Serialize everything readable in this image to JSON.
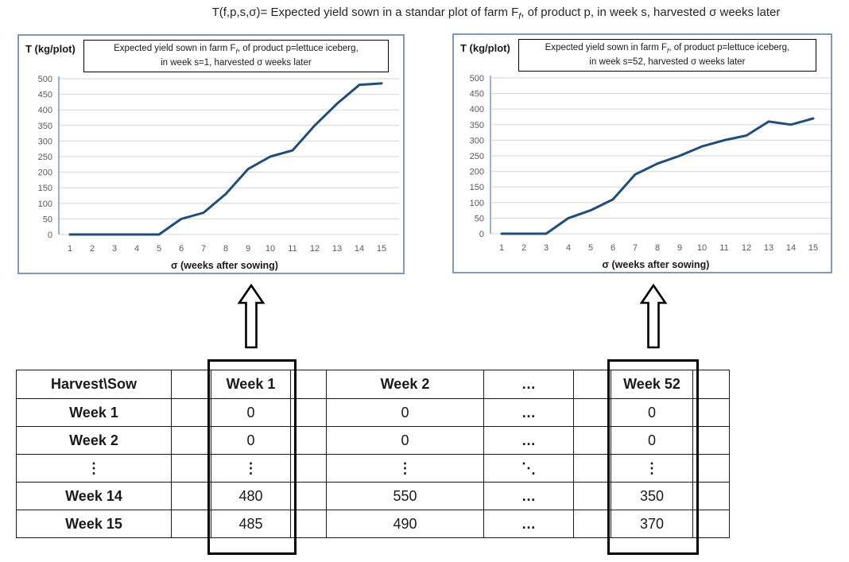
{
  "page": {
    "title_pre": "T(f,p,s,σ)= Expected yield sown in a standar plot of farm F",
    "title_sub": "f",
    "title_post": ", of product p, in week s, harvested σ weeks later"
  },
  "charts": [
    {
      "y_unit_label": "T (kg/plot)",
      "box_title_pre": "Expected yield sown in farm F",
      "box_title_sub": "f",
      "box_title_mid": ", of product p=lettuce iceberg,",
      "box_title_line2": "in week s=1, harvested σ weeks later",
      "x_axis_title": "σ (weeks after sowing)"
    },
    {
      "y_unit_label": "T (kg/plot)",
      "box_title_pre": "Expected yield sown in farm F",
      "box_title_sub": "f",
      "box_title_mid": ", of product p=lettuce iceberg,",
      "box_title_line2": "in week s=52, harvested σ weeks later",
      "x_axis_title": "σ (weeks after sowing)"
    }
  ],
  "chart_data": [
    {
      "type": "line",
      "title": "Expected yield sown in farm Ff, of product p=lettuce iceberg, in week s=1, harvested σ weeks later",
      "x": [
        1,
        2,
        3,
        4,
        5,
        6,
        7,
        8,
        9,
        10,
        11,
        12,
        13,
        14,
        15
      ],
      "values": [
        0,
        0,
        0,
        0,
        0,
        50,
        70,
        130,
        210,
        250,
        270,
        350,
        420,
        480,
        485
      ],
      "xlabel": "σ (weeks after sowing)",
      "ylabel": "T (kg/plot)",
      "ylim": [
        0,
        500
      ],
      "y_ticks": [
        0,
        50,
        100,
        150,
        200,
        250,
        300,
        350,
        400,
        450,
        500
      ],
      "grid": true,
      "legend": "none"
    },
    {
      "type": "line",
      "title": "Expected yield sown in farm Ff, of product p=lettuce iceberg, in week s=52, harvested σ weeks later",
      "x": [
        1,
        2,
        3,
        4,
        5,
        6,
        7,
        8,
        9,
        10,
        11,
        12,
        13,
        14,
        15
      ],
      "values": [
        0,
        0,
        0,
        50,
        75,
        110,
        190,
        225,
        250,
        280,
        300,
        315,
        360,
        350,
        370
      ],
      "xlabel": "σ (weeks after sowing)",
      "ylabel": "T (kg/plot)",
      "ylim": [
        0,
        500
      ],
      "y_ticks": [
        0,
        50,
        100,
        150,
        200,
        250,
        300,
        350,
        400,
        450,
        500
      ],
      "grid": true,
      "legend": "none"
    }
  ],
  "table": {
    "header": [
      "Harvest\\Sow",
      "",
      "Week 1",
      "",
      "Week 2",
      "…",
      "",
      "Week 52",
      ""
    ],
    "rows": [
      [
        "Week 1",
        "",
        "0",
        "",
        "0",
        "…",
        "",
        "0",
        ""
      ],
      [
        "Week 2",
        "",
        "0",
        "",
        "0",
        "…",
        "",
        "0",
        ""
      ],
      [
        "⋮",
        "",
        "⋮",
        "",
        "⋮",
        "⋱",
        "",
        "⋮",
        ""
      ],
      [
        "Week 14",
        "",
        "480",
        "",
        "550",
        "…",
        "",
        "350",
        ""
      ],
      [
        "Week 15",
        "",
        "485",
        "",
        "490",
        "…",
        "",
        "370",
        ""
      ]
    ]
  },
  "colors": {
    "line": "#1f4e79",
    "panel_border": "#8399b8",
    "grid": "#dcdcdc",
    "tick_text": "#595959",
    "axis_line": "#9ab3d5"
  }
}
